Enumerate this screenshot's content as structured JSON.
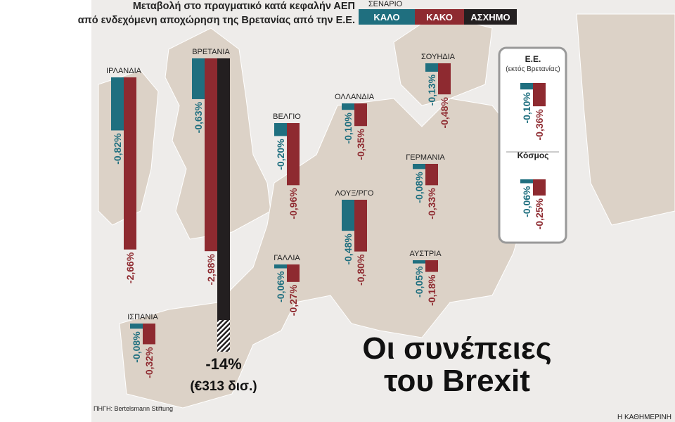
{
  "chart_data": {
    "type": "bar",
    "title": [
      "Μεταβολή στο πραγματικό κατά κεφαλήν ΑΕΠ",
      "από ενδεχόμενη αποχώρηση της Βρετανίας από την Ε.Ε."
    ],
    "legend_title": "ΣΕΝΑΡΙΟ",
    "headline": [
      "Οι συνέπειες",
      "του Brexit"
    ],
    "annotations": [
      "(εκτός Βρετανίας)",
      "(€313 δισ.)"
    ],
    "source": "ΠΗΓΗ: Bertelsmann Stiftung",
    "publisher": "Η ΚΑΘΗΜΕΡΙΝΗ",
    "categories": [
      "ΙΡΛΑΝΔΙΑ",
      "ΒΡΕΤΑΝΙΑ",
      "ΒΕΛΓΙΟ",
      "ΟΛΛΑΝΔΙΑ",
      "ΣΟΥΗΔΙΑ",
      "ΓΕΡΜΑΝΙΑ",
      "ΛΟΥΞ/ΡΓΟ",
      "ΓΑΛΛΙΑ",
      "ΑΥΣΤΡΙΑ",
      "ΙΣΠΑΝΙΑ",
      "Ε.Ε.",
      "Κόσμος"
    ],
    "series": [
      {
        "name": "ΚΑΛΟ",
        "color": "#1f6f7f",
        "values": [
          -0.82,
          -0.63,
          -0.2,
          -0.1,
          -0.13,
          -0.08,
          -0.48,
          -0.06,
          -0.05,
          -0.08,
          -0.1,
          -0.06
        ],
        "value_labels": [
          "-0,82%",
          "-0,63%",
          "-0,20%",
          "-0,10%",
          "-0,13%",
          "-0,08%",
          "-0,48%",
          "-0,06%",
          "-0,05%",
          "-0,08%",
          "-0,10%",
          "-0,06%"
        ]
      },
      {
        "name": "ΚΑΚΟ",
        "color": "#8e2a30",
        "values": [
          -2.66,
          -2.98,
          -0.96,
          -0.35,
          -0.48,
          -0.33,
          -0.8,
          -0.27,
          -0.18,
          -0.32,
          -0.36,
          -0.25
        ],
        "value_labels": [
          "-2,66%",
          "-2,98%",
          "-0,96%",
          "-0,35%",
          "-0,48%",
          "-0,33%",
          "-0,80%",
          "-0,27%",
          "-0,18%",
          "-0,32%",
          "-0,36%",
          "-0,25%"
        ]
      },
      {
        "name": "ΑΣΧΗΜΟ",
        "color": "#231f20",
        "values": [
          null,
          -14,
          null,
          null,
          null,
          null,
          null,
          null,
          null,
          null,
          null,
          null
        ],
        "value_labels": [
          null,
          "-14%",
          null,
          null,
          null,
          null,
          null,
          null,
          null,
          null,
          null,
          null
        ]
      }
    ]
  }
}
